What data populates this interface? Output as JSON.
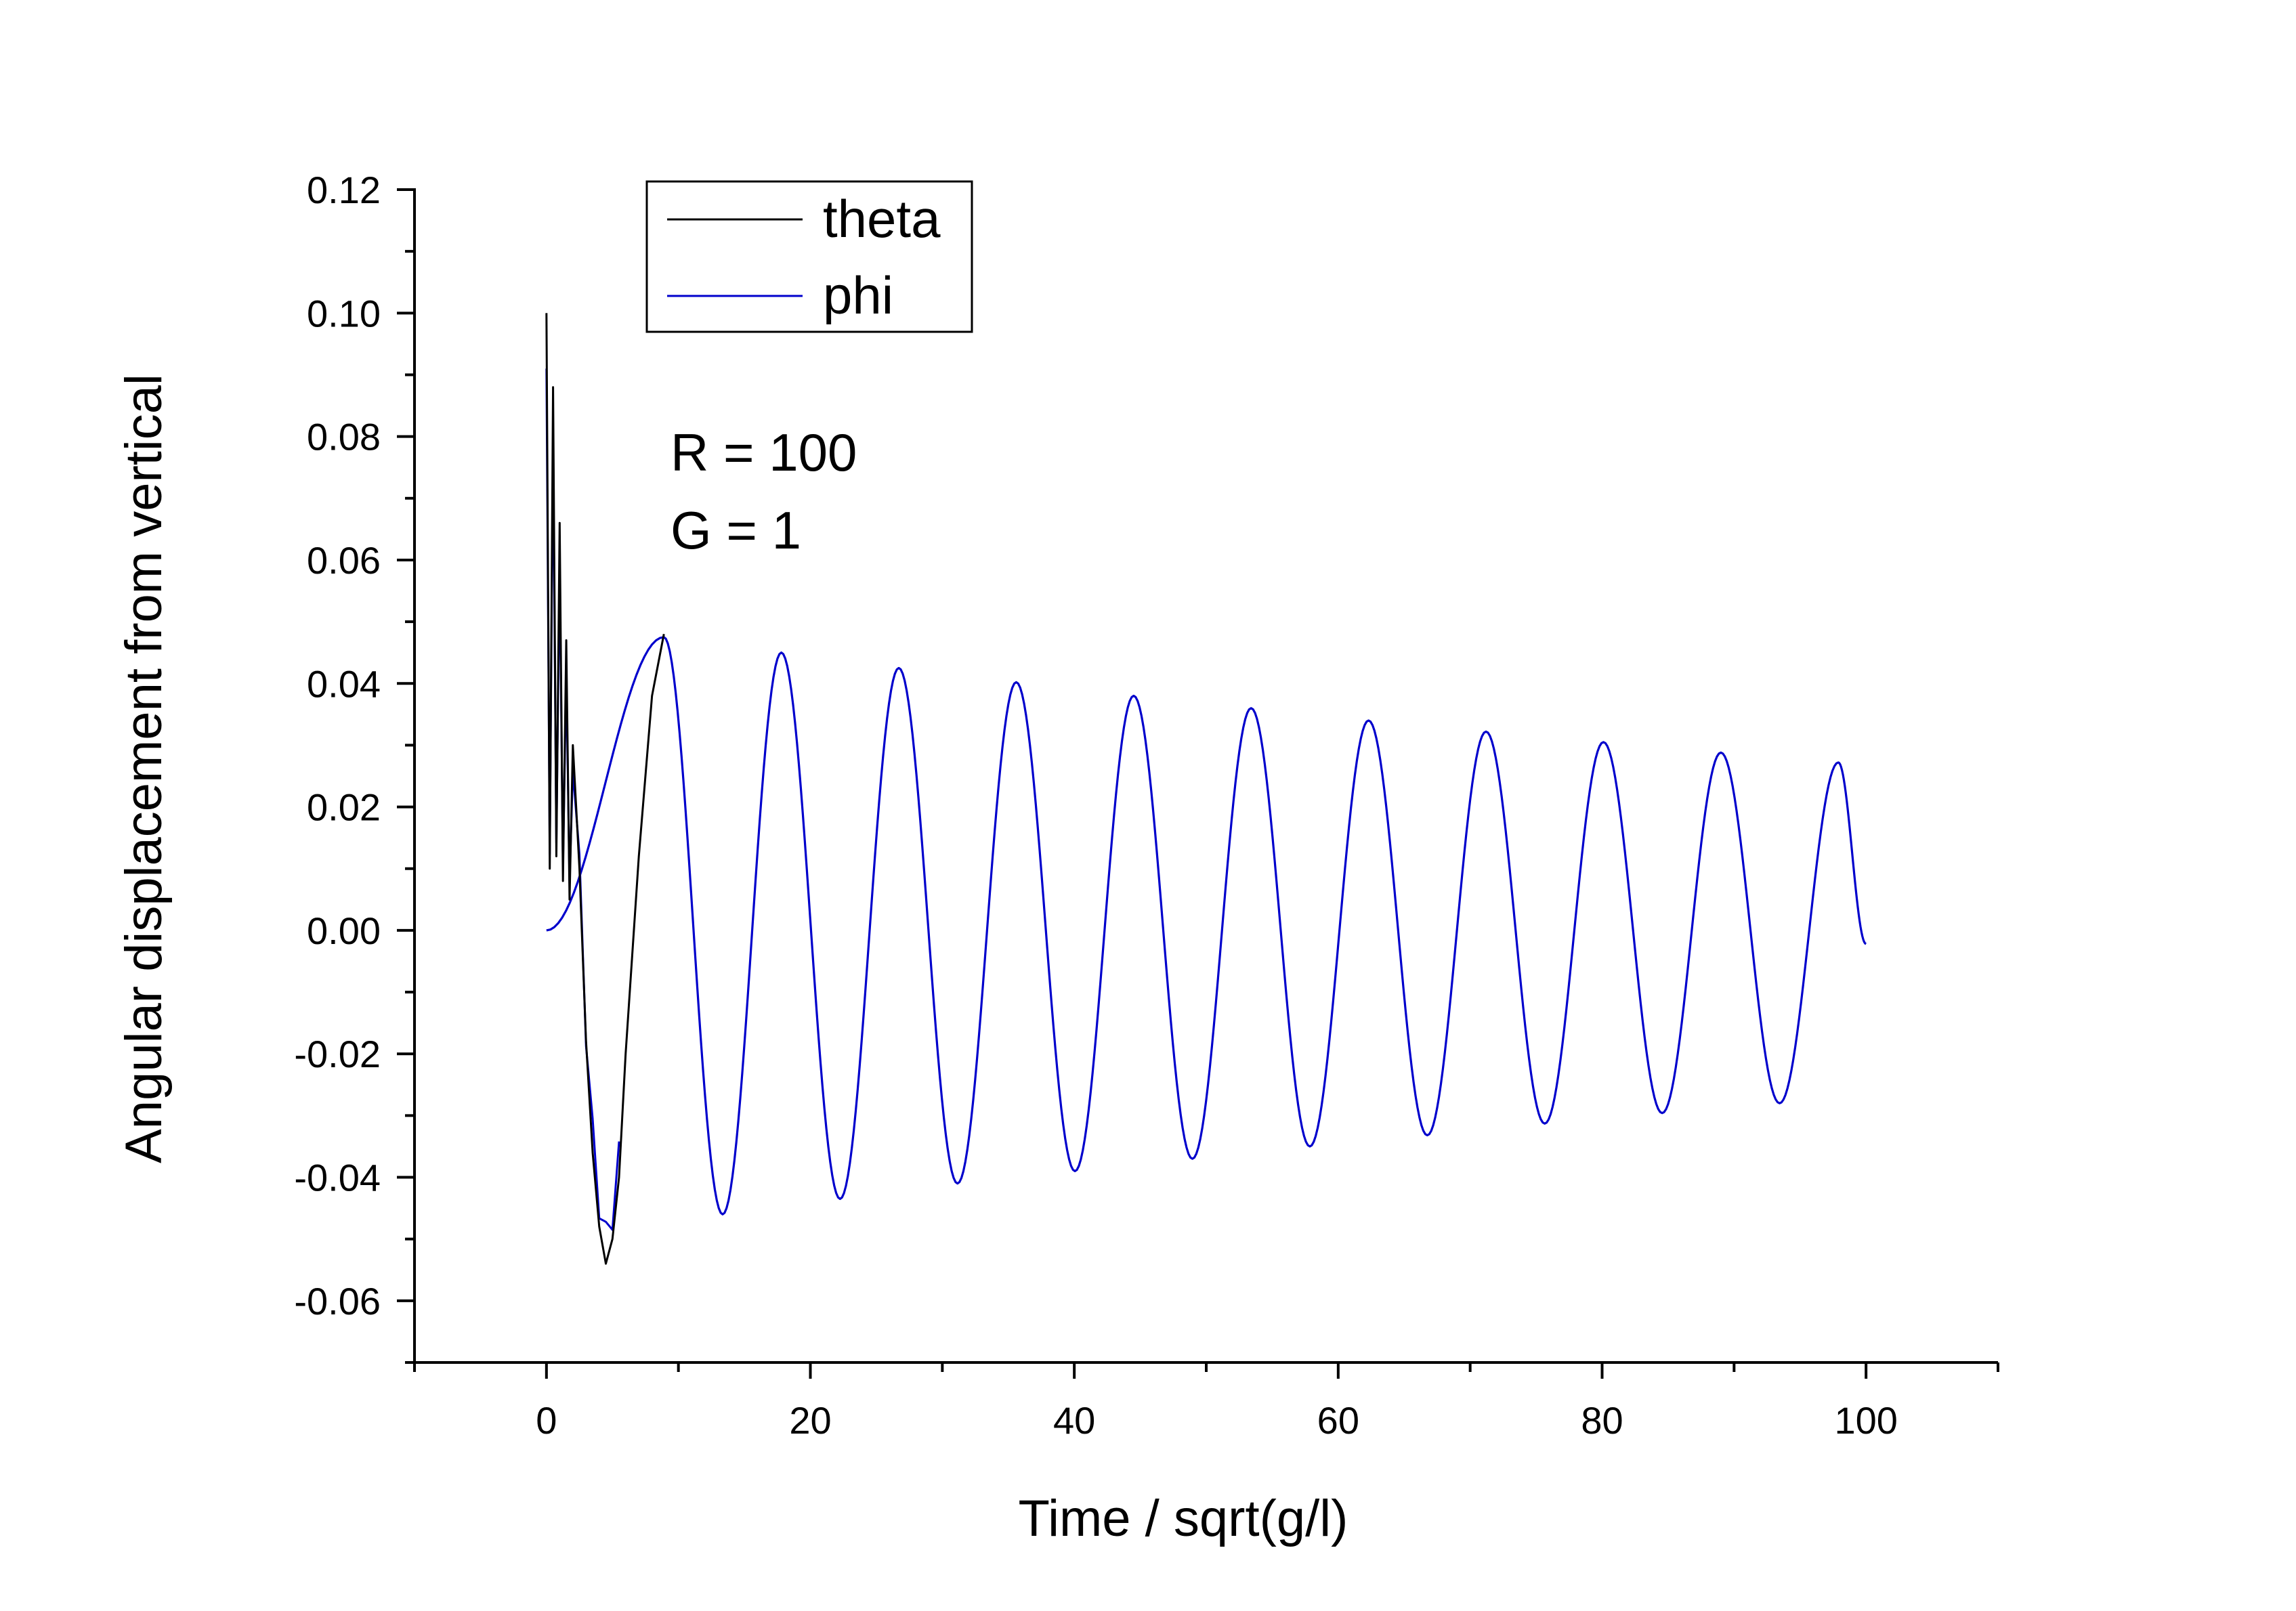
{
  "chart_data": {
    "type": "line",
    "title": "",
    "xlabel": "Time / sqrt(g/l)",
    "ylabel": "Angular displacement from vertical",
    "xlim": [
      -10,
      110
    ],
    "ylim": [
      -0.07,
      0.12
    ],
    "x_ticks": [
      "0",
      "20",
      "40",
      "60",
      "80",
      "100"
    ],
    "y_ticks": [
      "0.12",
      "0.10",
      "0.08",
      "0.06",
      "0.04",
      "0.02",
      "0.00",
      "-0.02",
      "-0.04",
      "-0.06"
    ],
    "grid": false,
    "legend_position": "top-left",
    "annotations": [
      "R = 100",
      "G = 1"
    ],
    "series": [
      {
        "name": "theta",
        "color": "#000000",
        "x": [
          0,
          0.25,
          0.5,
          0.75,
          1.0,
          1.25,
          1.5,
          1.75,
          2.0,
          2.5,
          3.0,
          3.5,
          4.0,
          4.5,
          5.0,
          5.5,
          6.0,
          7.0,
          8.0,
          8.9
        ],
        "y": [
          0.1,
          0.01,
          0.088,
          0.012,
          0.066,
          0.008,
          0.047,
          0.005,
          0.03,
          0.01,
          -0.018,
          -0.036,
          -0.048,
          -0.054,
          -0.05,
          -0.04,
          -0.02,
          0.012,
          0.038,
          0.048
        ]
      },
      {
        "name": "phi",
        "color": "#0000cc",
        "x": [
          0,
          8.9,
          13.35,
          17.8,
          22.25,
          26.7,
          31.15,
          35.6,
          40.05,
          44.5,
          48.95,
          53.4,
          57.85,
          62.3,
          66.75,
          71.2,
          75.65,
          80.1,
          84.55,
          89.0,
          93.45,
          97.9,
          100
        ],
        "y": [
          0.0,
          0.0475,
          -0.046,
          0.045,
          -0.0435,
          0.0425,
          -0.041,
          0.0402,
          -0.039,
          0.038,
          -0.037,
          0.036,
          -0.035,
          0.034,
          -0.0332,
          0.0322,
          -0.0313,
          0.0305,
          -0.0296,
          0.0288,
          -0.028,
          0.0272,
          -0.0022
        ]
      }
    ]
  }
}
